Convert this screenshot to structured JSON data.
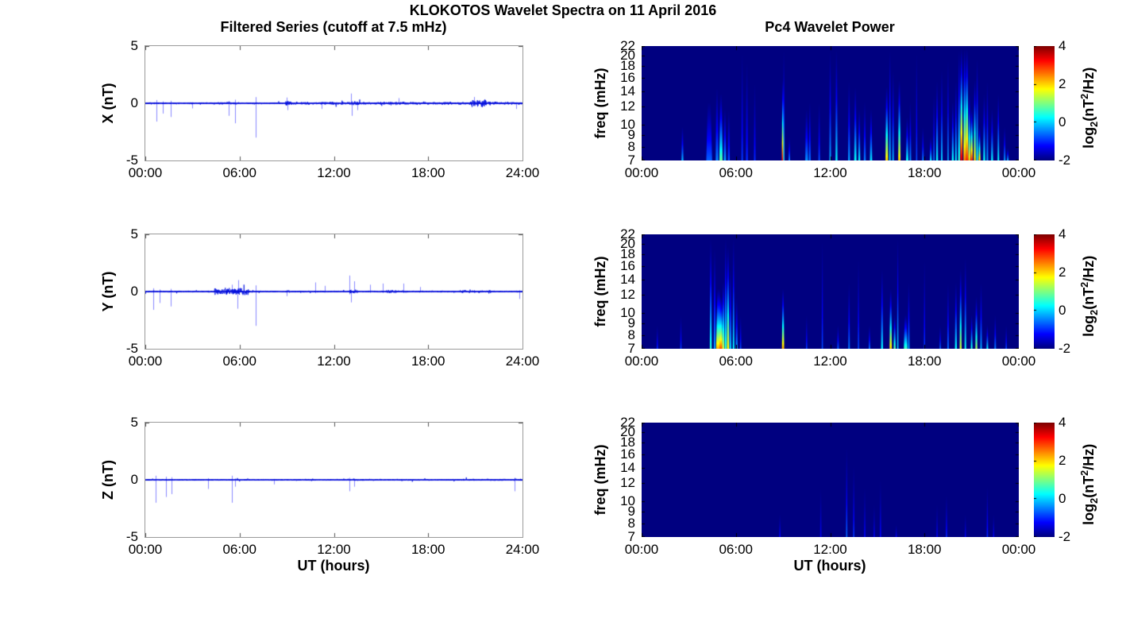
{
  "figure": {
    "title": "KLOKOTOS Wavelet Spectra on 11 April 2016"
  },
  "left_column": {
    "title": "Filtered Series (cutoff at 7.5 mHz)",
    "xlabel": "UT (hours)"
  },
  "right_column": {
    "title": "Pc4 Wavelet Power",
    "xlabel": "UT (hours)",
    "colorbar": {
      "ticks": [
        "4",
        "2",
        "0",
        "-2"
      ],
      "label_prefix": "log",
      "label_sub": "2",
      "label_mid": "(nT",
      "label_sup": "2",
      "label_suffix": "/Hz)"
    }
  },
  "colors": {
    "line_blue": "#0010e0",
    "spike_blue": "rgba(40,40,255,0.55)",
    "heatmap_background": "#000086",
    "panel_border": "#9a9a9a",
    "text": "#000000"
  },
  "chart_data": [
    {
      "id": "series-x",
      "type": "line",
      "ylabel": "X (nT)",
      "xlim_hours": [
        0,
        24
      ],
      "ylim": [
        -5,
        5
      ],
      "xtick_labels": [
        "00:00",
        "06:00",
        "12:00",
        "18:00",
        "24:00"
      ],
      "ytick_labels": [
        "5",
        "0",
        "-5"
      ],
      "seed": 7,
      "noise_envelope": [
        [
          0,
          24,
          0.05
        ],
        [
          4.3,
          6.2,
          0.07
        ],
        [
          8.9,
          9.3,
          0.13
        ],
        [
          9,
          24,
          0.08
        ],
        [
          12.9,
          13.7,
          0.12
        ],
        [
          15.9,
          16.5,
          0.1
        ],
        [
          20.7,
          21.7,
          0.22
        ],
        [
          21.7,
          22.6,
          0.12
        ]
      ],
      "spikes": [
        [
          0.7,
          -1.6
        ],
        [
          1.1,
          -0.9
        ],
        [
          1.6,
          -1.2
        ],
        [
          3.0,
          -0.45
        ],
        [
          5.3,
          -1.1
        ],
        [
          5.7,
          -1.75
        ],
        [
          7.0,
          -3.0
        ],
        [
          9.0,
          0.5
        ],
        [
          9.05,
          -0.6
        ],
        [
          11.2,
          -0.5
        ],
        [
          13.1,
          0.85
        ],
        [
          13.15,
          -1.1
        ],
        [
          13.5,
          -0.6
        ],
        [
          16.1,
          0.45
        ],
        [
          20.9,
          0.55
        ],
        [
          23.6,
          -0.5
        ]
      ]
    },
    {
      "id": "series-y",
      "type": "line",
      "ylabel": "Y (nT)",
      "xlim_hours": [
        0,
        24
      ],
      "ylim": [
        -5,
        5
      ],
      "xtick_labels": [
        "00:00",
        "06:00",
        "12:00",
        "18:00",
        "24:00"
      ],
      "ytick_labels": [
        "5",
        "0",
        "-5"
      ],
      "seed": 13,
      "noise_envelope": [
        [
          0,
          24,
          0.05
        ],
        [
          4.4,
          6.6,
          0.2
        ],
        [
          8.9,
          9.2,
          0.09
        ],
        [
          12.9,
          13.5,
          0.11
        ],
        [
          15.3,
          16.6,
          0.09
        ],
        [
          20,
          22,
          0.08
        ]
      ],
      "spikes": [
        [
          0.5,
          -1.6
        ],
        [
          0.9,
          -1.0
        ],
        [
          1.6,
          -1.3
        ],
        [
          5.5,
          0.6
        ],
        [
          5.85,
          -1.5
        ],
        [
          5.9,
          1.0
        ],
        [
          7.0,
          -3.0
        ],
        [
          9.0,
          -0.4
        ],
        [
          10.8,
          0.8
        ],
        [
          11.4,
          0.5
        ],
        [
          13.0,
          1.4
        ],
        [
          13.1,
          -0.95
        ],
        [
          13.3,
          0.9
        ],
        [
          14.3,
          0.6
        ],
        [
          15.1,
          0.7
        ],
        [
          16.4,
          0.7
        ],
        [
          17.5,
          0.4
        ],
        [
          23.8,
          -0.65
        ]
      ]
    },
    {
      "id": "series-z",
      "type": "line",
      "ylabel": "Z (nT)",
      "xlim_hours": [
        0,
        24
      ],
      "ylim": [
        -5,
        5
      ],
      "xtick_labels": [
        "00:00",
        "06:00",
        "12:00",
        "18:00",
        "24:00"
      ],
      "ytick_labels": [
        "5",
        "0",
        "-5"
      ],
      "seed": 21,
      "noise_envelope": [
        [
          0,
          24,
          0.045
        ],
        [
          13,
          15,
          0.055
        ],
        [
          20,
          24,
          0.055
        ]
      ],
      "spikes": [
        [
          0.65,
          -2.0
        ],
        [
          1.3,
          -1.5
        ],
        [
          1.65,
          -1.25
        ],
        [
          4.0,
          -0.8
        ],
        [
          5.5,
          -2.0
        ],
        [
          5.7,
          -0.6
        ],
        [
          8.2,
          -0.4
        ],
        [
          13.0,
          -1.0
        ],
        [
          13.3,
          -0.6
        ],
        [
          23.5,
          -1.0
        ]
      ]
    },
    {
      "id": "wavelet-x",
      "type": "heatmap",
      "ylabel": "freq (mHz)",
      "yscale": "log",
      "ylim": [
        7,
        22
      ],
      "clim": [
        -2,
        4
      ],
      "colormap": "jet",
      "xtick_labels": [
        "00:00",
        "06:00",
        "12:00",
        "18:00",
        "00:00"
      ],
      "ytick_values": [
        22,
        20,
        18,
        16,
        14,
        12,
        10,
        9,
        8,
        7
      ],
      "events": [
        [
          2.6,
          0.1,
          10,
          -0.2
        ],
        [
          4.3,
          0.35,
          13,
          -0.7
        ],
        [
          4.8,
          0.15,
          15,
          -0.5
        ],
        [
          5.05,
          0.18,
          14,
          0.8
        ],
        [
          5.3,
          0.12,
          12,
          -0.3
        ],
        [
          5.55,
          0.1,
          12,
          -0.8
        ],
        [
          6.4,
          0.08,
          22,
          -0.9
        ],
        [
          6.7,
          0.1,
          20,
          -1.0
        ],
        [
          7.2,
          0.08,
          16,
          -1.0
        ],
        [
          9.0,
          0.14,
          16,
          3.2
        ],
        [
          9.05,
          0.06,
          22,
          0.0
        ],
        [
          9.4,
          0.08,
          9,
          -0.5
        ],
        [
          10.5,
          0.15,
          12,
          -0.4
        ],
        [
          10.7,
          0.1,
          13,
          -0.6
        ],
        [
          11.3,
          0.08,
          13,
          -0.8
        ],
        [
          12.0,
          0.08,
          22,
          -0.2
        ],
        [
          12.4,
          0.1,
          22,
          0.2
        ],
        [
          13.2,
          0.1,
          16,
          -0.3
        ],
        [
          13.6,
          0.12,
          15,
          0.3
        ],
        [
          13.85,
          0.1,
          12,
          0.2
        ],
        [
          14.2,
          0.1,
          13,
          -0.5
        ],
        [
          14.6,
          0.12,
          12,
          0.1
        ],
        [
          15.6,
          0.14,
          15,
          2.0
        ],
        [
          15.8,
          0.08,
          22,
          0.0
        ],
        [
          16.0,
          0.08,
          18,
          -0.2
        ],
        [
          16.4,
          0.12,
          16,
          2.0
        ],
        [
          16.9,
          0.12,
          11,
          0.3
        ],
        [
          17.1,
          0.08,
          13,
          -0.4
        ],
        [
          17.5,
          0.06,
          22,
          -0.8
        ],
        [
          17.9,
          0.08,
          10,
          -0.5
        ],
        [
          18.4,
          0.1,
          9,
          0.0
        ],
        [
          18.6,
          0.06,
          14,
          -0.5
        ],
        [
          18.8,
          0.1,
          16,
          0.2
        ],
        [
          19.1,
          0.08,
          18,
          0.0
        ],
        [
          19.5,
          0.06,
          20,
          -0.2
        ],
        [
          19.8,
          0.1,
          13,
          0.3
        ],
        [
          20.0,
          0.08,
          16,
          0.2
        ],
        [
          20.2,
          0.1,
          22,
          0.5
        ],
        [
          20.35,
          0.12,
          22,
          3.5
        ],
        [
          20.55,
          0.12,
          22,
          2.5
        ],
        [
          20.7,
          0.14,
          22,
          3.0
        ],
        [
          20.85,
          0.1,
          14,
          2.0
        ],
        [
          21.0,
          0.12,
          12,
          3.0
        ],
        [
          21.2,
          0.1,
          16,
          2.0
        ],
        [
          21.35,
          0.08,
          20,
          0.5
        ],
        [
          21.5,
          0.1,
          10,
          2.0
        ],
        [
          21.8,
          0.1,
          14,
          0.3
        ],
        [
          22.0,
          0.08,
          16,
          -0.3
        ],
        [
          22.3,
          0.1,
          12,
          0.2
        ],
        [
          22.7,
          0.08,
          14,
          0.3
        ],
        [
          23.1,
          0.08,
          10,
          -0.3
        ],
        [
          23.3,
          0.08,
          8,
          -0.2
        ]
      ]
    },
    {
      "id": "wavelet-y",
      "type": "heatmap",
      "ylabel": "freq (mHz)",
      "yscale": "log",
      "ylim": [
        7,
        22
      ],
      "clim": [
        -2,
        4
      ],
      "colormap": "jet",
      "xtick_labels": [
        "00:00",
        "06:00",
        "12:00",
        "18:00",
        "00:00"
      ],
      "ytick_values": [
        22,
        20,
        18,
        16,
        14,
        12,
        10,
        9,
        8,
        7
      ],
      "events": [
        [
          1.0,
          0.06,
          9,
          -1.0
        ],
        [
          2.5,
          0.06,
          10,
          -0.9
        ],
        [
          4.4,
          0.1,
          22,
          0.5
        ],
        [
          4.65,
          0.1,
          20,
          -0.3
        ],
        [
          4.9,
          0.3,
          13,
          2.2
        ],
        [
          5.05,
          0.18,
          12,
          2.8
        ],
        [
          5.2,
          0.12,
          14,
          1.5
        ],
        [
          5.35,
          0.1,
          22,
          0.5
        ],
        [
          5.5,
          0.12,
          20,
          1.8
        ],
        [
          5.65,
          0.1,
          16,
          0.0
        ],
        [
          5.85,
          0.08,
          22,
          0.3
        ],
        [
          6.05,
          0.1,
          12,
          -0.3
        ],
        [
          6.3,
          0.06,
          10,
          -0.8
        ],
        [
          9.0,
          0.12,
          13,
          2.2
        ],
        [
          10.5,
          0.06,
          10,
          -0.9
        ],
        [
          11.5,
          0.05,
          22,
          -0.8
        ],
        [
          12.5,
          0.08,
          9,
          -0.7
        ],
        [
          13.2,
          0.08,
          14,
          -0.5
        ],
        [
          13.8,
          0.06,
          18,
          -0.8
        ],
        [
          14.5,
          0.08,
          9,
          -0.6
        ],
        [
          15.3,
          0.1,
          16,
          0.2
        ],
        [
          15.85,
          0.12,
          13,
          2.0
        ],
        [
          16.1,
          0.1,
          10,
          0.8
        ],
        [
          16.3,
          0.06,
          22,
          0.0
        ],
        [
          16.8,
          0.2,
          10,
          0.6
        ],
        [
          17.0,
          0.08,
          14,
          -0.3
        ],
        [
          18.0,
          0.06,
          18,
          -0.9
        ],
        [
          19.0,
          0.06,
          9,
          -0.6
        ],
        [
          19.5,
          0.08,
          14,
          -0.6
        ],
        [
          20.0,
          0.1,
          14,
          0.3
        ],
        [
          20.3,
          0.1,
          16,
          1.5
        ],
        [
          20.6,
          0.08,
          18,
          0.3
        ],
        [
          21.0,
          0.08,
          10,
          0.5
        ],
        [
          21.3,
          0.1,
          12,
          1.2
        ],
        [
          21.6,
          0.08,
          14,
          -0.2
        ],
        [
          22.0,
          0.08,
          9,
          0.2
        ],
        [
          22.5,
          0.08,
          10,
          -0.5
        ],
        [
          23.2,
          0.06,
          9,
          -0.8
        ]
      ]
    },
    {
      "id": "wavelet-z",
      "type": "heatmap",
      "ylabel": "freq (mHz)",
      "yscale": "log",
      "ylim": [
        7,
        22
      ],
      "clim": [
        -2,
        4
      ],
      "colormap": "jet",
      "xtick_labels": [
        "00:00",
        "06:00",
        "12:00",
        "18:00",
        "00:00"
      ],
      "ytick_values": [
        22,
        20,
        18,
        16,
        14,
        12,
        10,
        9,
        8,
        7
      ],
      "events": [
        [
          8.8,
          0.06,
          9,
          -1.2
        ],
        [
          11.4,
          0.05,
          12,
          -1.3
        ],
        [
          13.05,
          0.06,
          18,
          -0.6
        ],
        [
          13.5,
          0.06,
          15,
          -0.9
        ],
        [
          14.2,
          0.05,
          12,
          -1.2
        ],
        [
          14.8,
          0.05,
          10,
          -1.3
        ],
        [
          15.2,
          0.05,
          13,
          -1.2
        ],
        [
          16.2,
          0.05,
          8,
          -1.3
        ],
        [
          18.8,
          0.05,
          10,
          -1.3
        ],
        [
          19.4,
          0.06,
          11,
          -1.0
        ],
        [
          20.6,
          0.05,
          9,
          -1.3
        ],
        [
          22.0,
          0.06,
          12,
          -1.0
        ],
        [
          22.4,
          0.05,
          9,
          -1.3
        ]
      ]
    }
  ]
}
